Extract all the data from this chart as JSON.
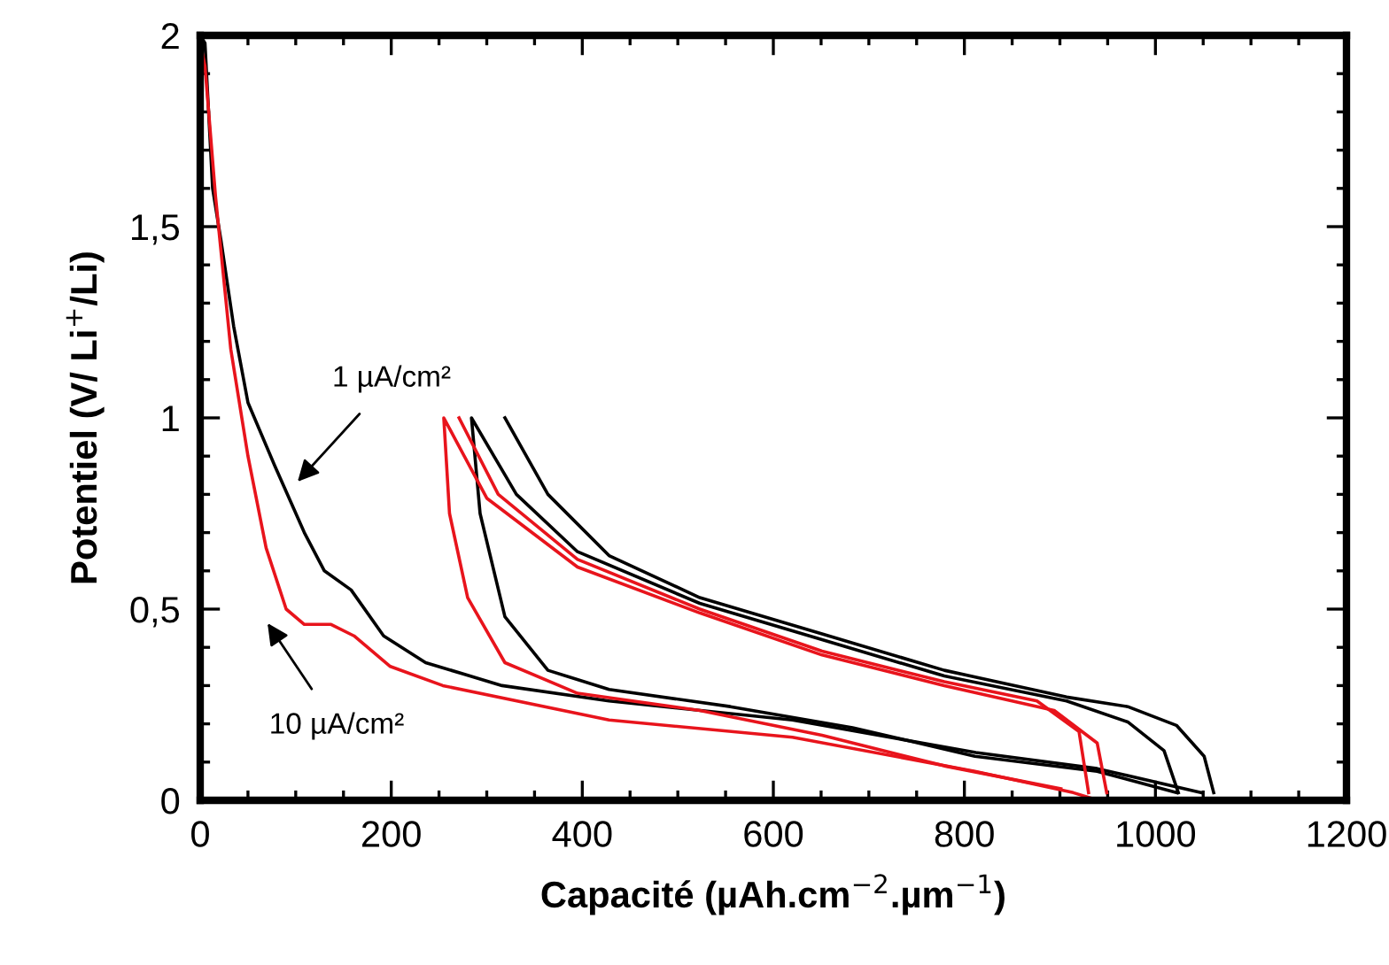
{
  "chart_data": {
    "type": "line",
    "xlabel": "Capacité (µAh.cm$^{−2}$.µm$^{−1}$)",
    "ylabel": "Potentiel (V/ Li$^{+}$/Li)",
    "xlim": [
      0,
      1200
    ],
    "ylim": [
      0,
      2
    ],
    "xticks": [
      0,
      {
        "value": 50,
        "label": null
      },
      {
        "value": 100,
        "label": null
      },
      {
        "value": 150,
        "label": null
      },
      200,
      {
        "value": 250,
        "label": null
      },
      {
        "value": 300,
        "label": null
      },
      {
        "value": 350,
        "label": null
      },
      400,
      {
        "value": 450,
        "label": null
      },
      {
        "value": 500,
        "label": null
      },
      {
        "value": 550,
        "label": null
      },
      600,
      {
        "value": 650,
        "label": null
      },
      {
        "value": 700,
        "label": null
      },
      {
        "value": 750,
        "label": null
      },
      800,
      {
        "value": 850,
        "label": null
      },
      {
        "value": 900,
        "label": null
      },
      {
        "value": 950,
        "label": null
      },
      1000,
      {
        "value": 1050,
        "label": null
      },
      {
        "value": 1100,
        "label": null
      },
      {
        "value": 1150,
        "label": null
      },
      1200
    ],
    "yticks": [
      0,
      {
        "value": 0.1,
        "label": null
      },
      {
        "value": 0.2,
        "label": null
      },
      {
        "value": 0.3,
        "label": null
      },
      {
        "value": 0.4,
        "label": null
      },
      {
        "value": 0.5,
        "label": "0,5"
      },
      {
        "value": 0.6,
        "label": null
      },
      {
        "value": 0.7,
        "label": null
      },
      {
        "value": 0.8,
        "label": null
      },
      {
        "value": 0.9,
        "label": null
      },
      1,
      {
        "value": 1.1,
        "label": null
      },
      {
        "value": 1.2,
        "label": null
      },
      {
        "value": 1.3,
        "label": null
      },
      {
        "value": 1.4,
        "label": null
      },
      {
        "value": 1.5,
        "label": "1,5"
      },
      {
        "value": 1.6,
        "label": null
      },
      {
        "value": 1.7,
        "label": null
      },
      {
        "value": 1.8,
        "label": null
      },
      {
        "value": 1.9,
        "label": null
      },
      2
    ],
    "grid": false,
    "legend": false,
    "marker": "none",
    "line_style": "solid",
    "series": [
      {
        "color": "#000000",
        "x": [
          0,
          5,
          13,
          22,
          35,
          50,
          78,
          109,
          130,
          158,
          192,
          236,
          316,
          428,
          620,
          812,
          939,
          1048
        ],
        "values": [
          2,
          1.98,
          1.6,
          1.46,
          1.24,
          1.04,
          0.875,
          0.7,
          0.6,
          0.55,
          0.43,
          0.36,
          0.3,
          0.26,
          0.21,
          0.125,
          0.083,
          0.02
        ]
      },
      {
        "color": "#000000",
        "x": [
          1022,
          939,
          811,
          683,
          555,
          428,
          364,
          319,
          293,
          284,
          331,
          395,
          523,
          651,
          779,
          907,
          971,
          1009,
          1024
        ],
        "values": [
          0.02,
          0.076,
          0.115,
          0.19,
          0.245,
          0.29,
          0.34,
          0.48,
          0.75,
          1,
          0.8,
          0.65,
          0.515,
          0.42,
          0.325,
          0.26,
          0.205,
          0.13,
          0.02
        ]
      },
      {
        "color": "#000000",
        "x": [
          319,
          364,
          428,
          523,
          651,
          779,
          907,
          971,
          1022,
          1051,
          1061
        ],
        "values": [
          1,
          0.8,
          0.64,
          0.53,
          0.435,
          0.34,
          0.27,
          0.245,
          0.196,
          0.115,
          0.02
        ]
      },
      {
        "color": "#e8141c",
        "x": [
          0,
          5,
          16,
          32,
          50,
          69,
          90,
          109,
          137,
          161,
          199,
          254,
          428,
          620,
          811,
          914,
          940
        ],
        "values": [
          1.98,
          1.92,
          1.58,
          1.18,
          0.9,
          0.66,
          0.5,
          0.46,
          0.46,
          0.43,
          0.35,
          0.3,
          0.21,
          0.165,
          0.076,
          0.02,
          0
        ]
      },
      {
        "color": "#e8141c",
        "x": [
          901,
          779,
          651,
          523,
          395,
          319,
          280,
          261,
          255,
          300,
          395,
          523,
          651,
          779,
          894,
          939,
          949
        ],
        "values": [
          0.03,
          0.09,
          0.17,
          0.235,
          0.28,
          0.36,
          0.53,
          0.75,
          1,
          0.79,
          0.61,
          0.49,
          0.38,
          0.3,
          0.235,
          0.15,
          0.02
        ]
      },
      {
        "color": "#e8141c",
        "x": [
          271,
          312,
          395,
          523,
          651,
          779,
          876,
          920,
          930
        ],
        "values": [
          1,
          0.8,
          0.63,
          0.5,
          0.39,
          0.31,
          0.26,
          0.18,
          0.02
        ]
      }
    ],
    "annotations": [
      "1 µA/cm²",
      "10 µA/cm²"
    ]
  }
}
